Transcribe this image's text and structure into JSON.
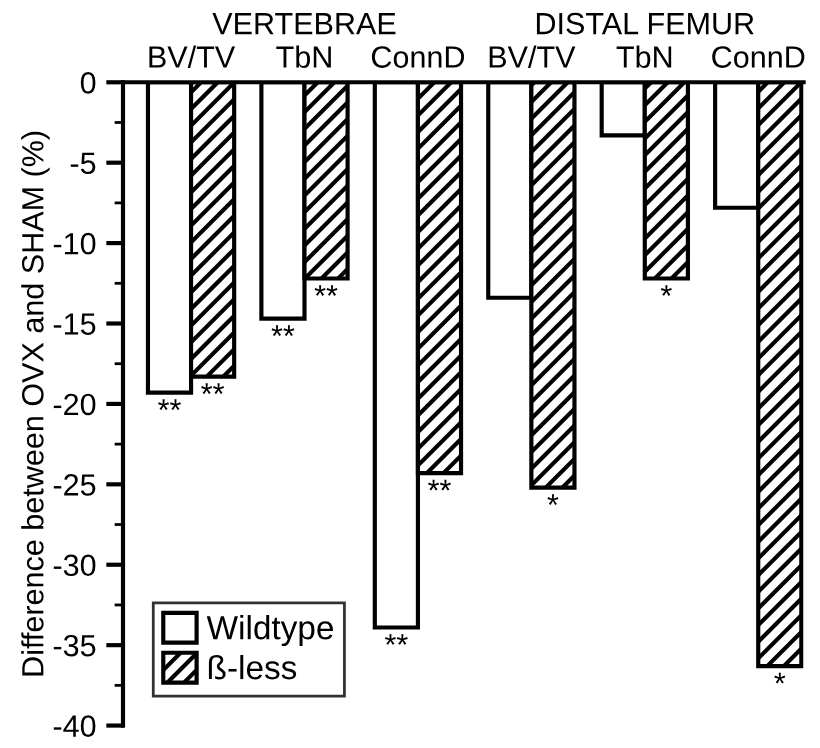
{
  "chart_data": {
    "type": "bar",
    "ylabel": "Difference between OVX and SHAM (%)",
    "categories": [
      "BV/TV",
      "TbN",
      "ConnD",
      "BV/TV",
      "TbN",
      "ConnD"
    ],
    "annotations": [
      "VERTEBRAE",
      "DISTAL FEMUR"
    ],
    "series": [
      {
        "name": "Wildtype",
        "color": "#ffffff",
        "values": [
          -19.3,
          -14.7,
          -33.9,
          -13.4,
          -3.3,
          -7.8
        ],
        "value_labels": [
          "**",
          "**",
          "**",
          null,
          null,
          null
        ]
      },
      {
        "name": "ß-less",
        "color": "#000000",
        "values": [
          -18.3,
          -12.2,
          -24.3,
          -25.2,
          -12.2,
          -36.3
        ],
        "value_labels": [
          "**",
          "**",
          "**",
          "*",
          "*",
          "*"
        ]
      }
    ],
    "ylim": [
      -40,
      0
    ],
    "yticks": [
      0,
      -5,
      -10,
      -15,
      -20,
      -25,
      -30,
      -35,
      -40
    ],
    "grid": false,
    "legend": "bottom left"
  }
}
